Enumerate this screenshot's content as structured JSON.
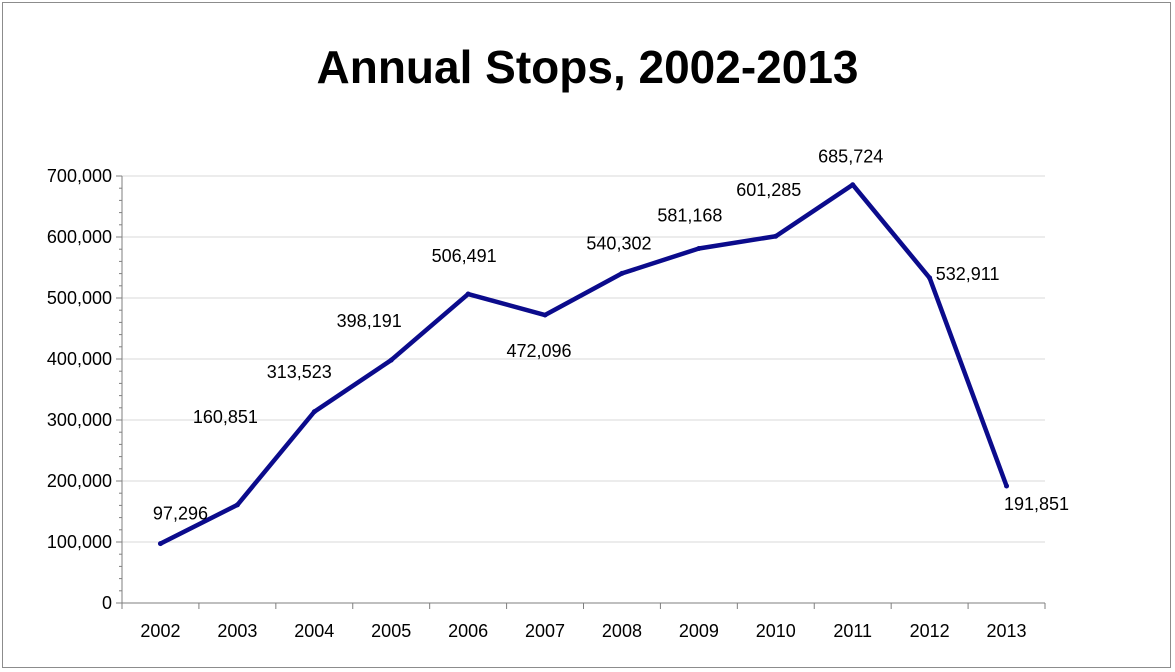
{
  "chart_data": {
    "type": "line",
    "title": "Annual Stops, 2002-2013",
    "xlabel": "",
    "ylabel": "",
    "categories": [
      "2002",
      "2003",
      "2004",
      "2005",
      "2006",
      "2007",
      "2008",
      "2009",
      "2010",
      "2011",
      "2012",
      "2013"
    ],
    "series": [
      {
        "values": [
          97296,
          160851,
          313523,
          398191,
          506491,
          472096,
          540302,
          581168,
          601285,
          685724,
          532911,
          191851
        ],
        "data_labels": [
          "97,296",
          "160,851",
          "313,523",
          "398,191",
          "506,491",
          "472,096",
          "540,302",
          "581,168",
          "601,285",
          "685,724",
          "532,911",
          "191,851"
        ],
        "color": "#0b0b8c"
      }
    ],
    "ylim": [
      0,
      700000
    ],
    "yticks": [
      0,
      100000,
      200000,
      300000,
      400000,
      500000,
      600000,
      700000
    ],
    "ytick_labels": [
      "0",
      "100,000",
      "200,000",
      "300,000",
      "400,000",
      "500,000",
      "600,000",
      "700,000"
    ],
    "grid": true,
    "legend": "none",
    "colors": {
      "line": "#0b0b8c",
      "grid": "#d9d9d9",
      "axis": "#7f7f7f"
    }
  }
}
